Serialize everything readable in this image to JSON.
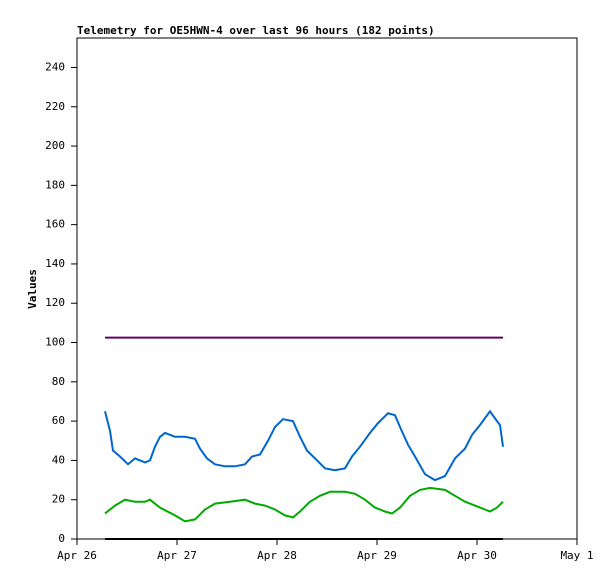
{
  "chart_data": {
    "type": "line",
    "title": "Telemetry for OE5HWN-4 over last 96 hours (182 points)",
    "y_label": "Values",
    "xlim": [
      0,
      5
    ],
    "xticks": [
      {
        "value": 0,
        "label": "Apr 26"
      },
      {
        "value": 1,
        "label": "Apr 27"
      },
      {
        "value": 2,
        "label": "Apr 28"
      },
      {
        "value": 3,
        "label": "Apr 29"
      },
      {
        "value": 4,
        "label": "Apr 30"
      },
      {
        "value": 5,
        "label": "May 1"
      }
    ],
    "ylim": [
      0,
      255
    ],
    "yticks": [
      0,
      20,
      40,
      60,
      80,
      100,
      120,
      140,
      160,
      180,
      200,
      220,
      240
    ],
    "series": [
      {
        "color": "#660066",
        "x": [
          0.28,
          4.26
        ],
        "values": [
          102.5,
          102.5
        ]
      },
      {
        "color": "#0066cc",
        "x": [
          0.28,
          0.33,
          0.36,
          0.43,
          0.51,
          0.58,
          0.68,
          0.73,
          0.78,
          0.83,
          0.88,
          0.98,
          1.08,
          1.18,
          1.23,
          1.3,
          1.38,
          1.48,
          1.58,
          1.68,
          1.75,
          1.83,
          1.91,
          1.98,
          2.06,
          2.16,
          2.23,
          2.3,
          2.38,
          2.48,
          2.58,
          2.68,
          2.75,
          2.83,
          2.93,
          3.01,
          3.11,
          3.18,
          3.23,
          3.31,
          3.38,
          3.48,
          3.58,
          3.68,
          3.78,
          3.88,
          3.95,
          4.03,
          4.13,
          4.2,
          4.23,
          4.26
        ],
        "values": [
          65,
          55,
          45,
          42,
          38,
          41,
          39,
          40,
          47,
          52,
          54,
          52,
          52,
          51,
          46,
          41,
          38,
          37,
          37,
          38,
          42,
          43,
          50,
          57,
          61,
          60,
          52,
          45,
          41,
          36,
          35,
          36,
          42,
          47,
          54,
          59,
          64,
          63,
          57,
          48,
          42,
          33,
          30,
          32,
          41,
          46,
          53,
          58,
          65,
          60,
          58,
          47
        ]
      },
      {
        "color": "#00aa00",
        "x": [
          0.28,
          0.38,
          0.48,
          0.58,
          0.68,
          0.73,
          0.83,
          0.98,
          1.08,
          1.18,
          1.28,
          1.38,
          1.53,
          1.68,
          1.78,
          1.88,
          1.98,
          2.08,
          2.16,
          2.23,
          2.33,
          2.43,
          2.53,
          2.68,
          2.78,
          2.88,
          2.98,
          3.08,
          3.15,
          3.23,
          3.33,
          3.43,
          3.53,
          3.68,
          3.78,
          3.88,
          3.98,
          4.08,
          4.13,
          4.2,
          4.26
        ],
        "values": [
          13,
          17,
          20,
          19,
          19,
          20,
          16,
          12,
          9,
          10,
          15,
          18,
          19,
          20,
          18,
          17,
          15,
          12,
          11,
          14,
          19,
          22,
          24,
          24,
          23,
          20,
          16,
          14,
          13,
          16,
          22,
          25,
          26,
          25,
          22,
          19,
          17,
          15,
          14,
          16,
          19
        ]
      },
      {
        "color": "#000000",
        "x": [
          0.28,
          4.26
        ],
        "values": [
          0,
          0
        ]
      }
    ]
  }
}
